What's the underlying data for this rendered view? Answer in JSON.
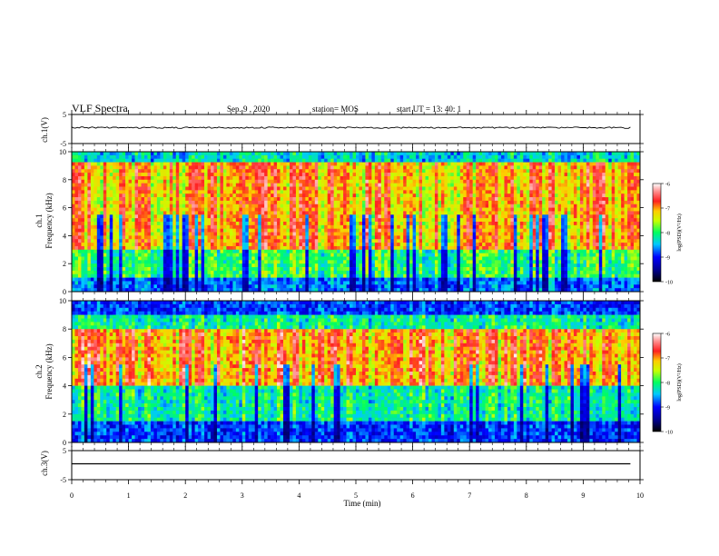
{
  "header": {
    "title": "VLF Spectra",
    "date": "Sep. 9 , 2020",
    "station": "station= MOS",
    "start": "start UT = 13: 40: 1"
  },
  "chart_data": [
    {
      "type": "line",
      "panel": "ch1-waveform",
      "ylabel": "ch.1(V)",
      "ylim": [
        -5,
        5
      ],
      "yticks": [
        "5",
        "-5"
      ],
      "xlim": [
        0,
        10
      ],
      "series": [
        {
          "values_description": "near-constant trace",
          "level": 0
        }
      ]
    },
    {
      "type": "heatmap",
      "panel": "ch1-spectrogram",
      "ylabel": "ch.1 Frequency (kHz)",
      "ylim": [
        0,
        10
      ],
      "yticks": [
        "0",
        "2",
        "4",
        "6",
        "8",
        "10"
      ],
      "xlim": [
        0,
        10
      ],
      "colorbar": {
        "label": "log(PSD)(V²/Hz)",
        "range": [
          -10,
          -6
        ],
        "ticks": [
          "-6",
          "-7",
          "-8",
          "-9",
          "-10"
        ]
      }
    },
    {
      "type": "heatmap",
      "panel": "ch2-spectrogram",
      "ylabel": "ch.2 Frequency (kHz)",
      "ylim": [
        0,
        10
      ],
      "yticks": [
        "0",
        "2",
        "4",
        "6",
        "8",
        "10"
      ],
      "xlim": [
        0,
        10
      ],
      "colorbar": {
        "label": "log(PSD)(V²/Hz)",
        "range": [
          -10,
          -6
        ],
        "ticks": [
          "-6",
          "-7",
          "-8",
          "-9",
          "-10"
        ]
      }
    },
    {
      "type": "line",
      "panel": "ch3-waveform",
      "ylabel": "ch.3(V)",
      "ylim": [
        -5,
        5
      ],
      "yticks": [
        "5",
        "-5"
      ],
      "xlim": [
        0,
        10
      ],
      "series": [
        {
          "values_description": "flat line",
          "level": 0
        }
      ]
    }
  ],
  "x_axis": {
    "label": "Time (min)",
    "ticks": [
      "0",
      "1",
      "2",
      "3",
      "4",
      "5",
      "6",
      "7",
      "8",
      "9",
      "10"
    ]
  },
  "labels": {
    "ch1_wave": "ch.1(V)",
    "ch1_spec_line1": "ch.1",
    "ch1_spec_line2": "Frequency (kHz)",
    "ch2_spec_line1": "ch.2",
    "ch2_spec_line2": "Frequency (kHz)",
    "ch3_wave": "ch.3(V)",
    "cbar_label": "log(PSD)(V²/Hz)"
  }
}
